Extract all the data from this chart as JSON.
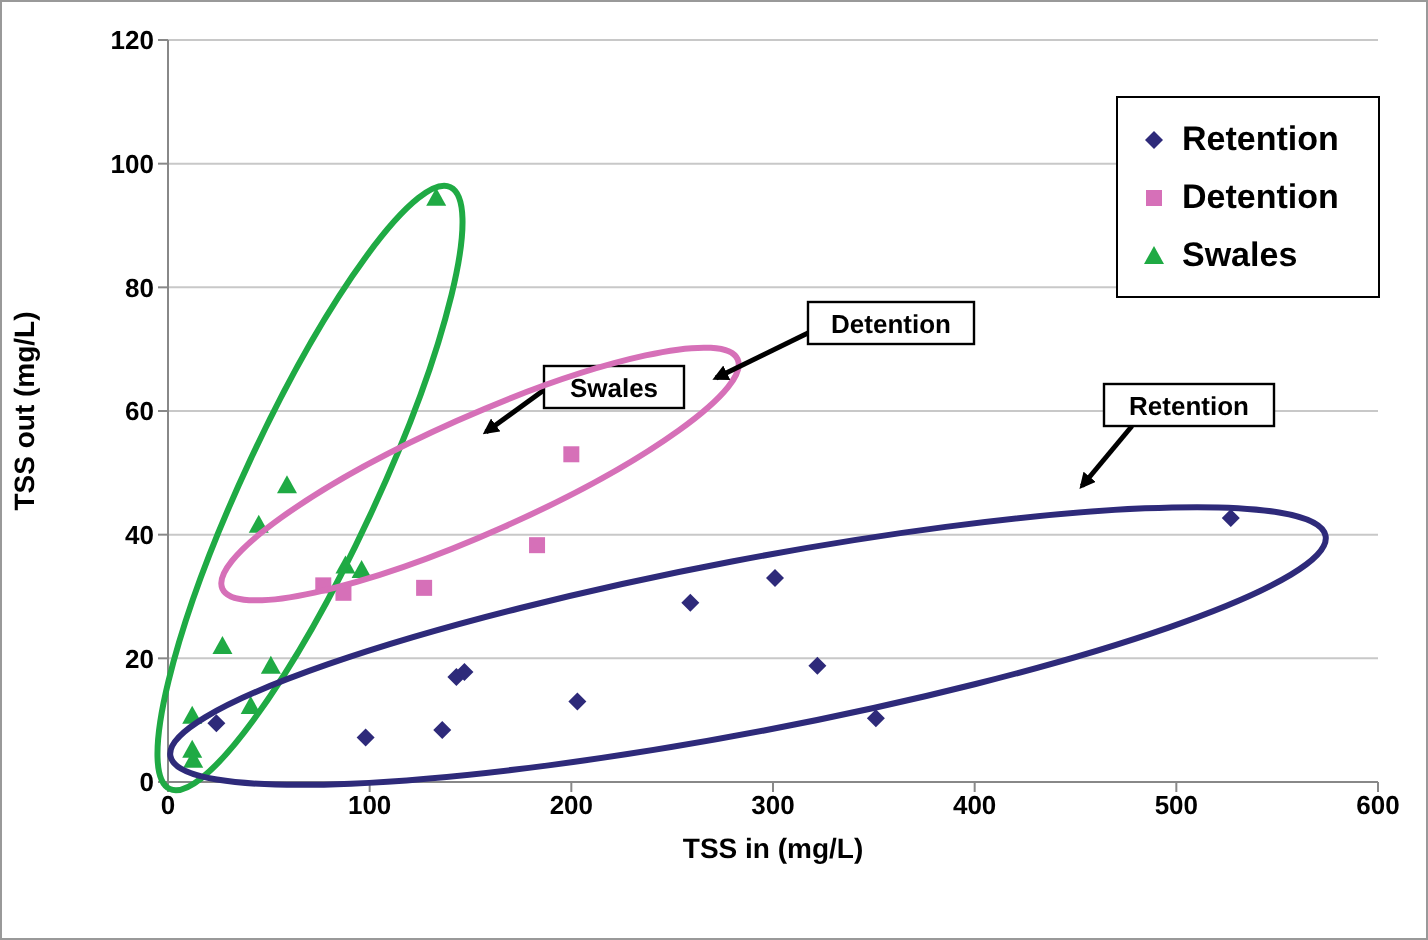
{
  "chart_data": {
    "type": "scatter",
    "xlabel": "TSS in (mg/L)",
    "ylabel": "TSS out (mg/L)",
    "xlim": [
      0,
      600
    ],
    "xticks": [
      0,
      100,
      200,
      300,
      400,
      500,
      600
    ],
    "ylim": [
      0,
      120
    ],
    "yticks": [
      0,
      20,
      40,
      60,
      80,
      100,
      120
    ],
    "grid": "y",
    "legend": "top right",
    "annotations": [
      "Swales",
      "Detention",
      "Retention"
    ],
    "series": [
      {
        "name": "Retention",
        "color": "#2e2a7a",
        "marker": "diamond",
        "x": [
          24,
          98,
          136,
          143,
          147,
          203,
          259,
          301,
          322,
          351,
          527
        ],
        "values": [
          9.5,
          7.2,
          8.4,
          17,
          17.8,
          13,
          29,
          33,
          18.8,
          10.3,
          42.7
        ]
      },
      {
        "name": "Detention",
        "color": "#d670b8",
        "marker": "square",
        "x": [
          77,
          87,
          127,
          183,
          200
        ],
        "values": [
          31.8,
          30.6,
          31.4,
          38.3,
          53
        ]
      },
      {
        "name": "Swales",
        "color": "#1faa44",
        "marker": "triangle",
        "x": [
          12,
          12,
          12.5,
          27,
          41,
          45,
          51,
          59,
          88,
          96,
          133
        ],
        "values": [
          10.7,
          5.2,
          3.6,
          22,
          12.3,
          41.6,
          18.8,
          48,
          35,
          34.3,
          94.5
        ]
      }
    ]
  }
}
